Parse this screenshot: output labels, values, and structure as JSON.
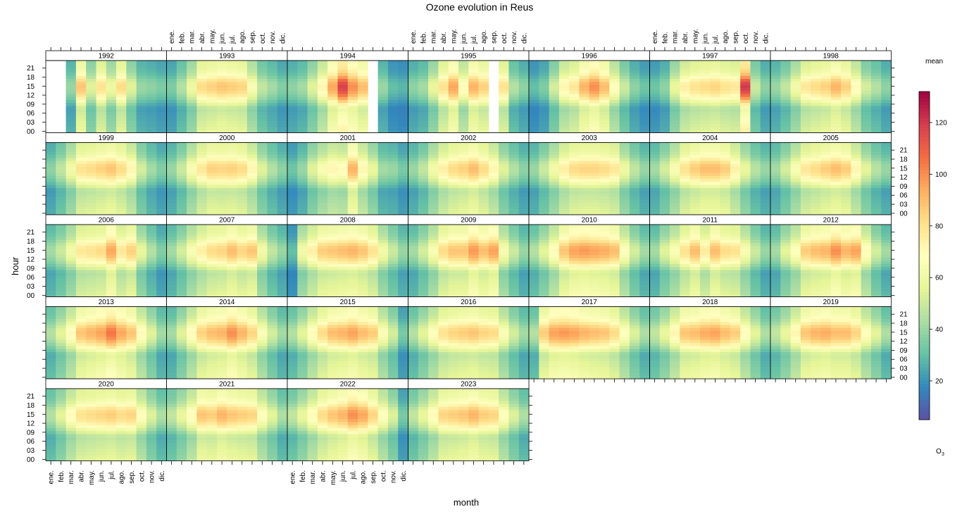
{
  "chart_data": {
    "type": "heatmap",
    "title": "Ozone evolution in Reus",
    "xlabel": "month",
    "ylabel": "hour",
    "months": [
      "ene.",
      "feb.",
      "mar.",
      "abr.",
      "may.",
      "jun.",
      "jul.",
      "ago.",
      "sep.",
      "oct.",
      "nov.",
      "dic."
    ],
    "hour_ticks": [
      "00",
      "03",
      "06",
      "09",
      "12",
      "15",
      "18",
      "21"
    ],
    "years": [
      "1992",
      "1993",
      "1994",
      "1995",
      "1996",
      "1997",
      "1998",
      "1999",
      "2000",
      "2001",
      "2002",
      "2003",
      "2004",
      "2005",
      "2006",
      "2007",
      "2008",
      "2009",
      "2010",
      "2011",
      "2012",
      "2013",
      "2014",
      "2015",
      "2016",
      "2017",
      "2018",
      "2019",
      "2020",
      "2021",
      "2022",
      "2023"
    ],
    "legend": {
      "title": "mean",
      "pollutant": "O",
      "pollutant_sub": "3",
      "range": [
        5,
        132
      ],
      "ticks": [
        20,
        40,
        60,
        80,
        100,
        120
      ]
    },
    "peak_ozone": [
      {
        "year": "1992",
        "values": [
          null,
          null,
          40,
          88,
          55,
          80,
          60,
          82,
          55,
          40,
          38,
          35
        ]
      },
      {
        "year": "1993",
        "values": [
          35,
          45,
          60,
          82,
          85,
          88,
          86,
          84,
          65,
          48,
          42,
          36
        ]
      },
      {
        "year": "1994",
        "values": [
          38,
          42,
          55,
          72,
          95,
          118,
          100,
          90,
          null,
          40,
          30,
          28
        ]
      },
      {
        "year": "1995",
        "values": [
          38,
          42,
          58,
          80,
          95,
          70,
          92,
          85,
          null,
          80,
          45,
          38
        ]
      },
      {
        "year": "1996",
        "values": [
          30,
          35,
          52,
          72,
          78,
          92,
          100,
          90,
          68,
          50,
          38,
          32
        ]
      },
      {
        "year": "1997",
        "values": [
          32,
          38,
          58,
          75,
          80,
          82,
          84,
          80,
          78,
          120,
          50,
          38
        ]
      },
      {
        "year": "1998",
        "values": [
          40,
          48,
          62,
          78,
          82,
          85,
          92,
          85,
          70,
          52,
          45,
          38
        ]
      },
      {
        "year": "1999",
        "values": [
          38,
          48,
          62,
          80,
          82,
          85,
          88,
          82,
          72,
          52,
          42,
          36
        ]
      },
      {
        "year": "2000",
        "values": [
          40,
          50,
          65,
          78,
          85,
          84,
          85,
          82,
          72,
          55,
          45,
          38
        ]
      },
      {
        "year": "2001",
        "values": [
          32,
          40,
          55,
          65,
          72,
          70,
          92,
          72,
          58,
          42,
          40,
          34
        ]
      },
      {
        "year": "2002",
        "values": [
          40,
          48,
          62,
          75,
          82,
          85,
          90,
          82,
          72,
          55,
          45,
          38
        ]
      },
      {
        "year": "2003",
        "values": [
          40,
          50,
          62,
          75,
          82,
          84,
          84,
          82,
          78,
          60,
          48,
          40
        ]
      },
      {
        "year": "2004",
        "values": [
          42,
          52,
          65,
          80,
          86,
          90,
          90,
          86,
          74,
          58,
          46,
          40
        ]
      },
      {
        "year": "2005",
        "values": [
          42,
          52,
          65,
          78,
          82,
          86,
          90,
          86,
          72,
          56,
          46,
          40
        ]
      },
      {
        "year": "2006",
        "values": [
          42,
          50,
          62,
          78,
          80,
          82,
          95,
          78,
          85,
          58,
          45,
          36
        ]
      },
      {
        "year": "2007",
        "values": [
          42,
          52,
          65,
          75,
          82,
          84,
          90,
          84,
          88,
          62,
          48,
          40
        ]
      },
      {
        "year": "2008",
        "values": [
          30,
          62,
          75,
          86,
          88,
          90,
          92,
          88,
          80,
          62,
          50,
          40
        ]
      },
      {
        "year": "2009",
        "values": [
          42,
          52,
          65,
          82,
          88,
          88,
          98,
          90,
          96,
          64,
          50,
          40
        ]
      },
      {
        "year": "2010",
        "values": [
          45,
          56,
          70,
          88,
          96,
          98,
          96,
          94,
          90,
          68,
          52,
          42
        ]
      },
      {
        "year": "2011",
        "values": [
          42,
          55,
          66,
          80,
          90,
          76,
          90,
          82,
          80,
          65,
          50,
          40
        ]
      },
      {
        "year": "2012",
        "values": [
          42,
          56,
          68,
          86,
          90,
          92,
          100,
          92,
          96,
          70,
          52,
          42
        ]
      },
      {
        "year": "2013",
        "values": [
          45,
          56,
          70,
          88,
          92,
          96,
          105,
          95,
          88,
          70,
          55,
          42
        ]
      },
      {
        "year": "2014",
        "values": [
          42,
          55,
          70,
          85,
          90,
          92,
          100,
          92,
          84,
          66,
          52,
          42
        ]
      },
      {
        "year": "2015",
        "values": [
          45,
          56,
          70,
          82,
          90,
          92,
          96,
          90,
          86,
          66,
          52,
          34
        ]
      },
      {
        "year": "2016",
        "values": [
          45,
          56,
          68,
          80,
          84,
          86,
          88,
          84,
          82,
          66,
          52,
          42
        ]
      },
      {
        "year": "2017",
        "values": [
          45,
          86,
          96,
          98,
          96,
          92,
          90,
          88,
          82,
          68,
          54,
          44
        ]
      },
      {
        "year": "2018",
        "values": [
          48,
          58,
          72,
          88,
          90,
          94,
          96,
          90,
          86,
          70,
          56,
          44
        ]
      },
      {
        "year": "2019",
        "values": [
          48,
          58,
          72,
          88,
          92,
          94,
          90,
          90,
          84,
          68,
          56,
          44
        ]
      },
      {
        "year": "2020",
        "values": [
          45,
          56,
          70,
          80,
          82,
          84,
          86,
          82,
          84,
          68,
          54,
          44
        ]
      },
      {
        "year": "2021",
        "values": [
          48,
          58,
          70,
          88,
          86,
          92,
          88,
          86,
          84,
          68,
          56,
          44
        ]
      },
      {
        "year": "2022",
        "values": [
          48,
          58,
          70,
          82,
          88,
          92,
          100,
          95,
          84,
          68,
          54,
          34
        ]
      },
      {
        "year": "2023",
        "values": [
          48,
          58,
          70,
          84,
          86,
          88,
          92,
          86,
          84,
          68,
          54,
          44
        ]
      }
    ]
  }
}
